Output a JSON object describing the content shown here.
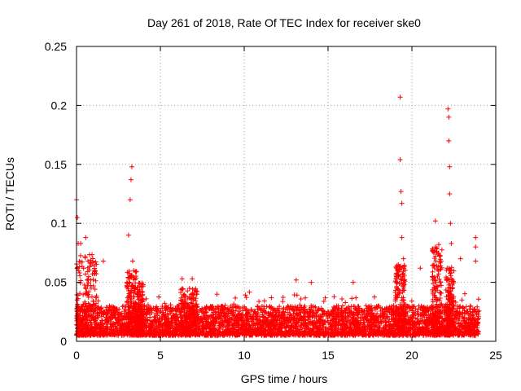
{
  "chart_data": {
    "type": "scatter",
    "title": "Day 261 of 2018, Rate Of TEC Index for receiver ske0",
    "xlabel": "GPS time / hours",
    "ylabel": "ROTI / TECUs",
    "xlim": [
      0,
      25
    ],
    "ylim": [
      0,
      0.25
    ],
    "xticks": [
      0,
      5,
      10,
      15,
      20,
      25
    ],
    "xtick_labels": [
      "0",
      "5",
      "10",
      "15",
      "20",
      "25"
    ],
    "yticks": [
      0,
      0.05,
      0.1,
      0.15,
      0.2,
      0.25
    ],
    "ytick_labels": [
      "0",
      "0.05",
      "0.1",
      "0.15",
      "0.2",
      "0.25"
    ],
    "grid": true,
    "marker": "+",
    "color": "#ff0000",
    "data_range_x": [
      0,
      24
    ],
    "base_level": [
      0.005,
      0.03
    ],
    "notable_peaks": [
      {
        "x": 0.0,
        "y": 0.12
      },
      {
        "x": 0.05,
        "y": 0.105
      },
      {
        "x": 0.1,
        "y": 0.083
      },
      {
        "x": 0.25,
        "y": 0.083
      },
      {
        "x": 0.55,
        "y": 0.088
      },
      {
        "x": 1.6,
        "y": 0.068
      },
      {
        "x": 3.1,
        "y": 0.09
      },
      {
        "x": 3.2,
        "y": 0.12
      },
      {
        "x": 3.25,
        "y": 0.137
      },
      {
        "x": 3.3,
        "y": 0.148
      },
      {
        "x": 3.35,
        "y": 0.068
      },
      {
        "x": 6.3,
        "y": 0.053
      },
      {
        "x": 6.9,
        "y": 0.053
      },
      {
        "x": 13.1,
        "y": 0.052
      },
      {
        "x": 14.0,
        "y": 0.05
      },
      {
        "x": 16.5,
        "y": 0.05
      },
      {
        "x": 19.15,
        "y": 0.06
      },
      {
        "x": 19.3,
        "y": 0.207
      },
      {
        "x": 19.3,
        "y": 0.154
      },
      {
        "x": 19.35,
        "y": 0.127
      },
      {
        "x": 19.4,
        "y": 0.117
      },
      {
        "x": 19.4,
        "y": 0.088
      },
      {
        "x": 19.5,
        "y": 0.07
      },
      {
        "x": 20.5,
        "y": 0.062
      },
      {
        "x": 21.4,
        "y": 0.102
      },
      {
        "x": 21.6,
        "y": 0.082
      },
      {
        "x": 22.15,
        "y": 0.197
      },
      {
        "x": 22.2,
        "y": 0.19
      },
      {
        "x": 22.2,
        "y": 0.17
      },
      {
        "x": 22.25,
        "y": 0.148
      },
      {
        "x": 22.25,
        "y": 0.125
      },
      {
        "x": 22.3,
        "y": 0.1
      },
      {
        "x": 22.35,
        "y": 0.083
      },
      {
        "x": 22.9,
        "y": 0.07
      },
      {
        "x": 23.8,
        "y": 0.088
      },
      {
        "x": 23.8,
        "y": 0.08
      },
      {
        "x": 23.8,
        "y": 0.068
      }
    ],
    "clusters": [
      {
        "x": [
          0.0,
          1.2
        ],
        "ymax": 0.075
      },
      {
        "x": [
          3.0,
          3.6
        ],
        "ymax": 0.06
      },
      {
        "x": [
          3.6,
          4.0
        ],
        "ymax": 0.05
      },
      {
        "x": [
          6.2,
          7.2
        ],
        "ymax": 0.045
      },
      {
        "x": [
          19.0,
          19.6
        ],
        "ymax": 0.065
      },
      {
        "x": [
          21.2,
          21.8
        ],
        "ymax": 0.08
      },
      {
        "x": [
          22.0,
          22.5
        ],
        "ymax": 0.065
      }
    ]
  }
}
